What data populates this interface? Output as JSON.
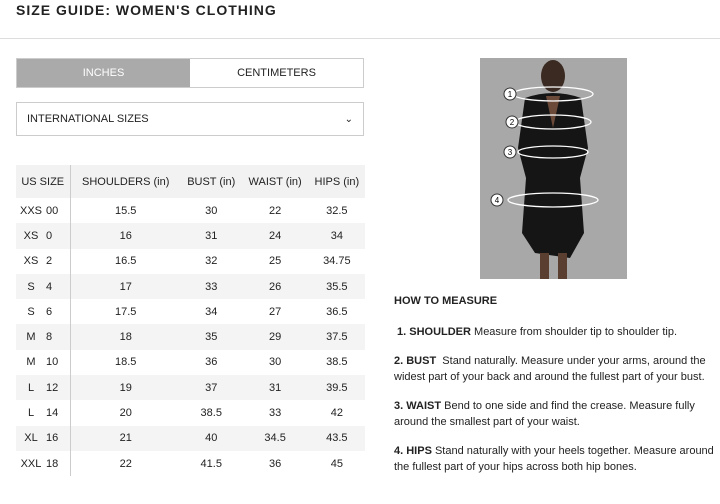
{
  "title": "SIZE GUIDE: WOMEN'S CLOTHING",
  "tabs": [
    {
      "label": "INCHES",
      "active": true
    },
    {
      "label": "CENTIMETERS",
      "active": false
    }
  ],
  "select": {
    "value": "INTERNATIONAL SIZES"
  },
  "table": {
    "headers": [
      "US SIZE",
      "SHOULDERS (in)",
      "BUST (in)",
      "WAIST (in)",
      "HIPS (in)"
    ],
    "rows": [
      [
        "XXS",
        "00",
        "15.5",
        "30",
        "22",
        "32.5"
      ],
      [
        "XS",
        "0",
        "16",
        "31",
        "24",
        "34"
      ],
      [
        "XS",
        "2",
        "16.5",
        "32",
        "25",
        "34.75"
      ],
      [
        "S",
        "4",
        "17",
        "33",
        "26",
        "35.5"
      ],
      [
        "S",
        "6",
        "17.5",
        "34",
        "27",
        "36.5"
      ],
      [
        "M",
        "8",
        "18",
        "35",
        "29",
        "37.5"
      ],
      [
        "M",
        "10",
        "18.5",
        "36",
        "30",
        "38.5"
      ],
      [
        "L",
        "12",
        "19",
        "37",
        "31",
        "39.5"
      ],
      [
        "L",
        "14",
        "20",
        "38.5",
        "33",
        "42"
      ],
      [
        "XL",
        "16",
        "21",
        "40",
        "34.5",
        "43.5"
      ],
      [
        "XXL",
        "18",
        "22",
        "41.5",
        "36",
        "45"
      ]
    ]
  },
  "image": {
    "markers": [
      "1",
      "2",
      "3",
      "4"
    ]
  },
  "howto": {
    "title": "HOW TO MEASURE",
    "items": [
      {
        "label": "1. SHOULDER",
        "text": " Measure from shoulder tip to shoulder tip."
      },
      {
        "label": "2. BUST",
        "text": "  Stand naturally. Measure under your arms, around the widest part of your back and around the fullest part of your bust."
      },
      {
        "label": "3. WAIST",
        "text": " Bend to one side and find the crease. Measure fully around the smallest part of your waist."
      },
      {
        "label": "4. HIPS",
        "text": " Stand naturally with your heels together. Measure around the fullest part of your hips across both hip bones."
      }
    ]
  }
}
